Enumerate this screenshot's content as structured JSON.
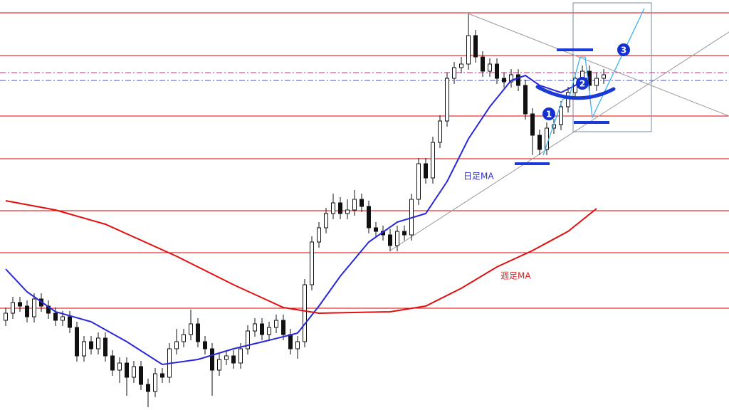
{
  "chart_data": {
    "type": "candlestick",
    "xlim": [
      -0.8,
      101.6
    ],
    "ylim": [
      0,
      576
    ],
    "open": [
      126,
      136,
      151,
      146,
      131,
      156,
      146,
      136,
      126,
      131,
      116,
      76,
      96,
      86,
      101,
      76,
      56,
      66,
      46,
      61,
      36,
      26,
      51,
      46,
      86,
      96,
      106,
      121,
      96,
      86,
      56,
      71,
      76,
      66,
      86,
      111,
      121,
      106,
      116,
      126,
      106,
      86,
      96,
      176,
      236,
      256,
      276,
      291,
      276,
      281,
      296,
      286,
      256,
      251,
      246,
      231,
      251,
      246,
      296,
      346,
      326,
      376,
      406,
      466,
      481,
      486,
      526,
      496,
      476,
      486,
      466,
      461,
      471,
      456,
      416,
      386,
      366,
      396,
      401,
      426,
      446,
      466,
      476,
      456,
      466
    ],
    "high": [
      144,
      159,
      159,
      154,
      164,
      164,
      154,
      144,
      139,
      139,
      124,
      104,
      104,
      109,
      109,
      84,
      74,
      74,
      69,
      69,
      44,
      59,
      59,
      94,
      114,
      114,
      141,
      129,
      104,
      94,
      79,
      84,
      84,
      94,
      119,
      129,
      129,
      124,
      134,
      134,
      114,
      104,
      184,
      244,
      264,
      284,
      304,
      299,
      296,
      309,
      304,
      294,
      264,
      259,
      254,
      259,
      259,
      304,
      354,
      354,
      384,
      414,
      474,
      489,
      496,
      556,
      534,
      504,
      494,
      494,
      474,
      479,
      479,
      464,
      424,
      394,
      404,
      409,
      434,
      454,
      474,
      484,
      484,
      474,
      479
    ],
    "low": [
      118,
      128,
      138,
      123,
      123,
      138,
      128,
      118,
      118,
      108,
      68,
      68,
      78,
      78,
      68,
      48,
      38,
      20,
      38,
      28,
      4,
      18,
      38,
      38,
      78,
      88,
      98,
      88,
      78,
      20,
      48,
      63,
      58,
      58,
      78,
      103,
      98,
      98,
      108,
      98,
      78,
      72,
      88,
      168,
      228,
      248,
      268,
      268,
      268,
      273,
      278,
      248,
      243,
      238,
      223,
      223,
      238,
      238,
      288,
      318,
      318,
      368,
      398,
      458,
      473,
      478,
      488,
      468,
      468,
      458,
      453,
      453,
      448,
      408,
      358,
      358,
      358,
      388,
      393,
      418,
      438,
      458,
      448,
      448,
      458
    ],
    "close": [
      136,
      151,
      146,
      131,
      156,
      146,
      136,
      126,
      131,
      116,
      76,
      96,
      86,
      101,
      76,
      56,
      66,
      46,
      61,
      36,
      26,
      51,
      46,
      86,
      96,
      106,
      121,
      96,
      86,
      56,
      71,
      76,
      66,
      86,
      111,
      121,
      106,
      116,
      126,
      106,
      86,
      96,
      176,
      236,
      256,
      276,
      291,
      276,
      281,
      296,
      286,
      256,
      251,
      246,
      231,
      251,
      246,
      296,
      346,
      326,
      376,
      406,
      466,
      481,
      486,
      526,
      496,
      476,
      486,
      466,
      461,
      471,
      456,
      416,
      386,
      366,
      396,
      401,
      426,
      446,
      466,
      476,
      456,
      466,
      471
    ],
    "series": [
      {
        "name": "日足MA",
        "color": "#2828d8",
        "x": [
          0,
          3,
          7,
          12,
          17,
          22,
          27,
          32,
          37,
          41,
          44,
          47,
          51,
          55,
          59,
          62,
          65,
          68,
          71,
          73,
          75,
          78,
          80,
          82
        ],
        "values": [
          198,
          166,
          138,
          124,
          96,
          64,
          71,
          86,
          98,
          108,
          146,
          188,
          236,
          264,
          276,
          321,
          381,
          426,
          463,
          470,
          456,
          446,
          456,
          468
        ]
      },
      {
        "name": "週足MA",
        "color": "#e01010",
        "x": [
          0,
          7,
          14,
          24,
          32,
          39,
          44,
          54,
          59,
          64,
          69,
          74,
          79,
          83
        ],
        "values": [
          294,
          281,
          261,
          216,
          176,
          144,
          136,
          138,
          146,
          171,
          201,
          224,
          251,
          283
        ]
      }
    ],
    "hlines": [
      558,
      498,
      413,
      353,
      280,
      221,
      143
    ],
    "hline_color": "#e00000",
    "dashed_lines": [
      {
        "value": 474,
        "color": "#e0208a"
      },
      {
        "value": 463,
        "color": "#4050e0"
      }
    ],
    "markers": [
      "1",
      "2",
      "3"
    ]
  }
}
